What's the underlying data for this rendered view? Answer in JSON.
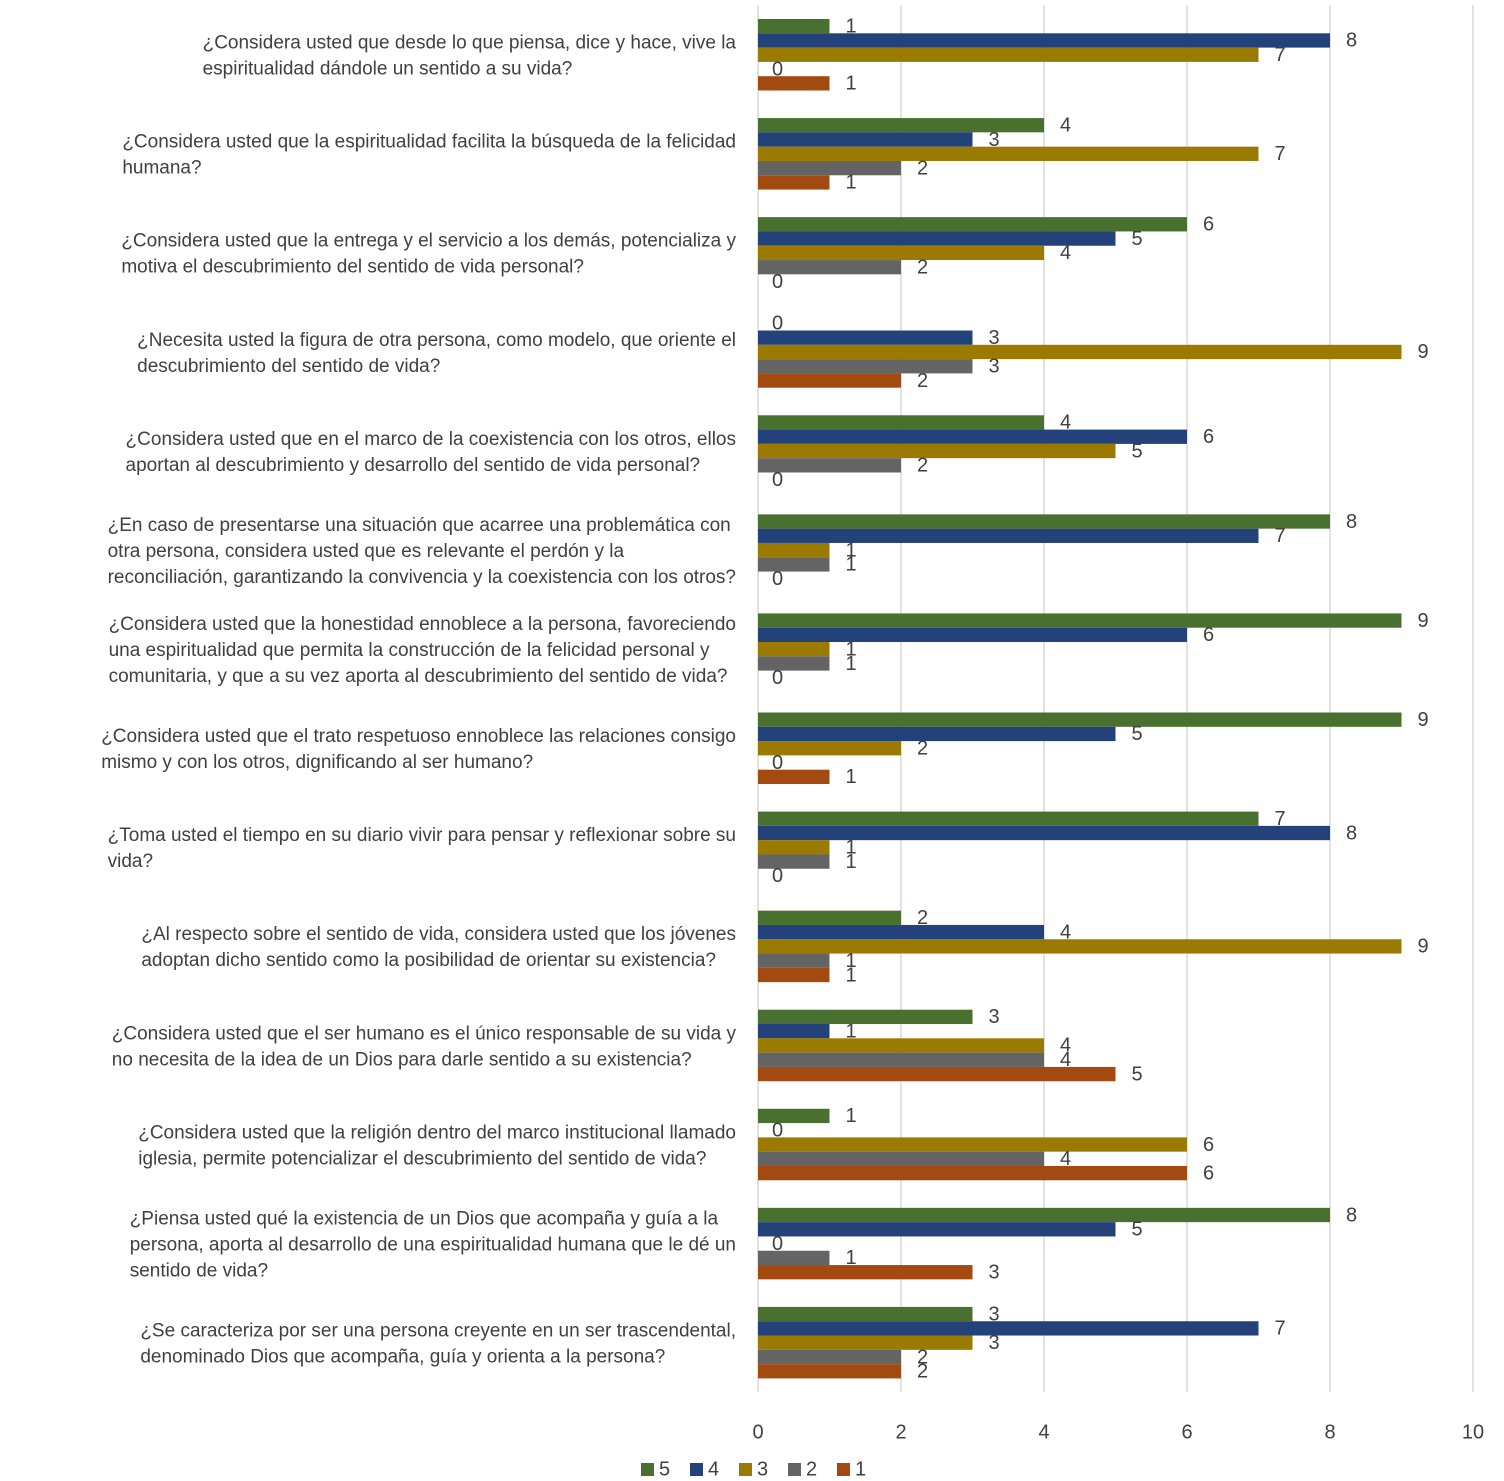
{
  "chart_data": {
    "type": "bar",
    "orientation": "horizontal",
    "categories": [
      [
        "¿Considera usted que desde lo que piensa, dice y hace, vive la",
        "espiritualidad dándole un sentido a su vida?"
      ],
      [
        "¿Considera usted que la espiritualidad facilita la búsqueda de la felicidad",
        "humana?"
      ],
      [
        "¿Considera usted que la entrega y el servicio a los demás, potencializa y",
        "motiva el descubrimiento del sentido de vida personal?"
      ],
      [
        "¿Necesita usted la figura de otra persona, como modelo, que oriente el",
        "descubrimiento del sentido de vida?"
      ],
      [
        "¿Considera usted que en el marco de la coexistencia con los otros, ellos",
        "aportan al descubrimiento y desarrollo del sentido de vida personal?"
      ],
      [
        "¿En caso de presentarse una situación que acarree una problemática con",
        "otra persona, considera usted que es relevante el perdón y la",
        "reconciliación, garantizando la convivencia y la coexistencia con los otros?"
      ],
      [
        "¿Considera usted que la honestidad ennoblece a la persona, favoreciendo",
        "una espiritualidad que permita la construcción de la felicidad personal y",
        "comunitaria, y que a su vez aporta al descubrimiento del sentido de vida?"
      ],
      [
        "¿Considera usted que el trato respetuoso ennoblece las relaciones consigo",
        "mismo y con los otros, dignificando al ser humano?"
      ],
      [
        "¿Toma usted el tiempo en su diario vivir para pensar y reflexionar sobre su",
        "vida?"
      ],
      [
        "¿Al respecto sobre el sentido de vida, considera usted que los jóvenes",
        "adoptan dicho sentido como la posibilidad de orientar su existencia?"
      ],
      [
        "¿Considera usted que el ser humano es el único responsable de su vida y",
        "no necesita de la idea de un Dios para darle sentido a su existencia?"
      ],
      [
        "¿Considera usted que la religión dentro del marco institucional llamado",
        "iglesia, permite potencializar el descubrimiento del sentido de vida?"
      ],
      [
        "¿Piensa usted qué la existencia de un Dios que acompaña y guía a la",
        "persona, aporta al desarrollo de una espiritualidad humana que le dé un",
        "sentido de vida?"
      ],
      [
        "¿Se caracteriza por ser una persona creyente en un ser trascendental,",
        "denominado Dios que acompaña, guía y orienta a la persona?"
      ]
    ],
    "series": [
      {
        "name": "5",
        "color": "#4a7030",
        "values": [
          1,
          4,
          6,
          0,
          4,
          8,
          9,
          9,
          7,
          2,
          3,
          1,
          8,
          3
        ]
      },
      {
        "name": "4",
        "color": "#23427a",
        "values": [
          8,
          3,
          5,
          3,
          6,
          7,
          6,
          5,
          8,
          4,
          1,
          0,
          5,
          7
        ]
      },
      {
        "name": "3",
        "color": "#9a7a00",
        "values": [
          7,
          7,
          4,
          9,
          5,
          1,
          1,
          2,
          1,
          9,
          4,
          6,
          0,
          3
        ]
      },
      {
        "name": "2",
        "color": "#646464",
        "values": [
          0,
          2,
          2,
          3,
          2,
          1,
          1,
          0,
          1,
          1,
          4,
          4,
          1,
          2
        ]
      },
      {
        "name": "1",
        "color": "#a34a10",
        "values": [
          1,
          1,
          0,
          2,
          0,
          0,
          0,
          1,
          0,
          1,
          5,
          6,
          3,
          2
        ]
      }
    ],
    "xlim": [
      0,
      10
    ],
    "xticks": [
      0,
      2,
      4,
      6,
      8,
      10
    ],
    "grid": true,
    "legend_position": "bottom",
    "data_labels": true
  }
}
